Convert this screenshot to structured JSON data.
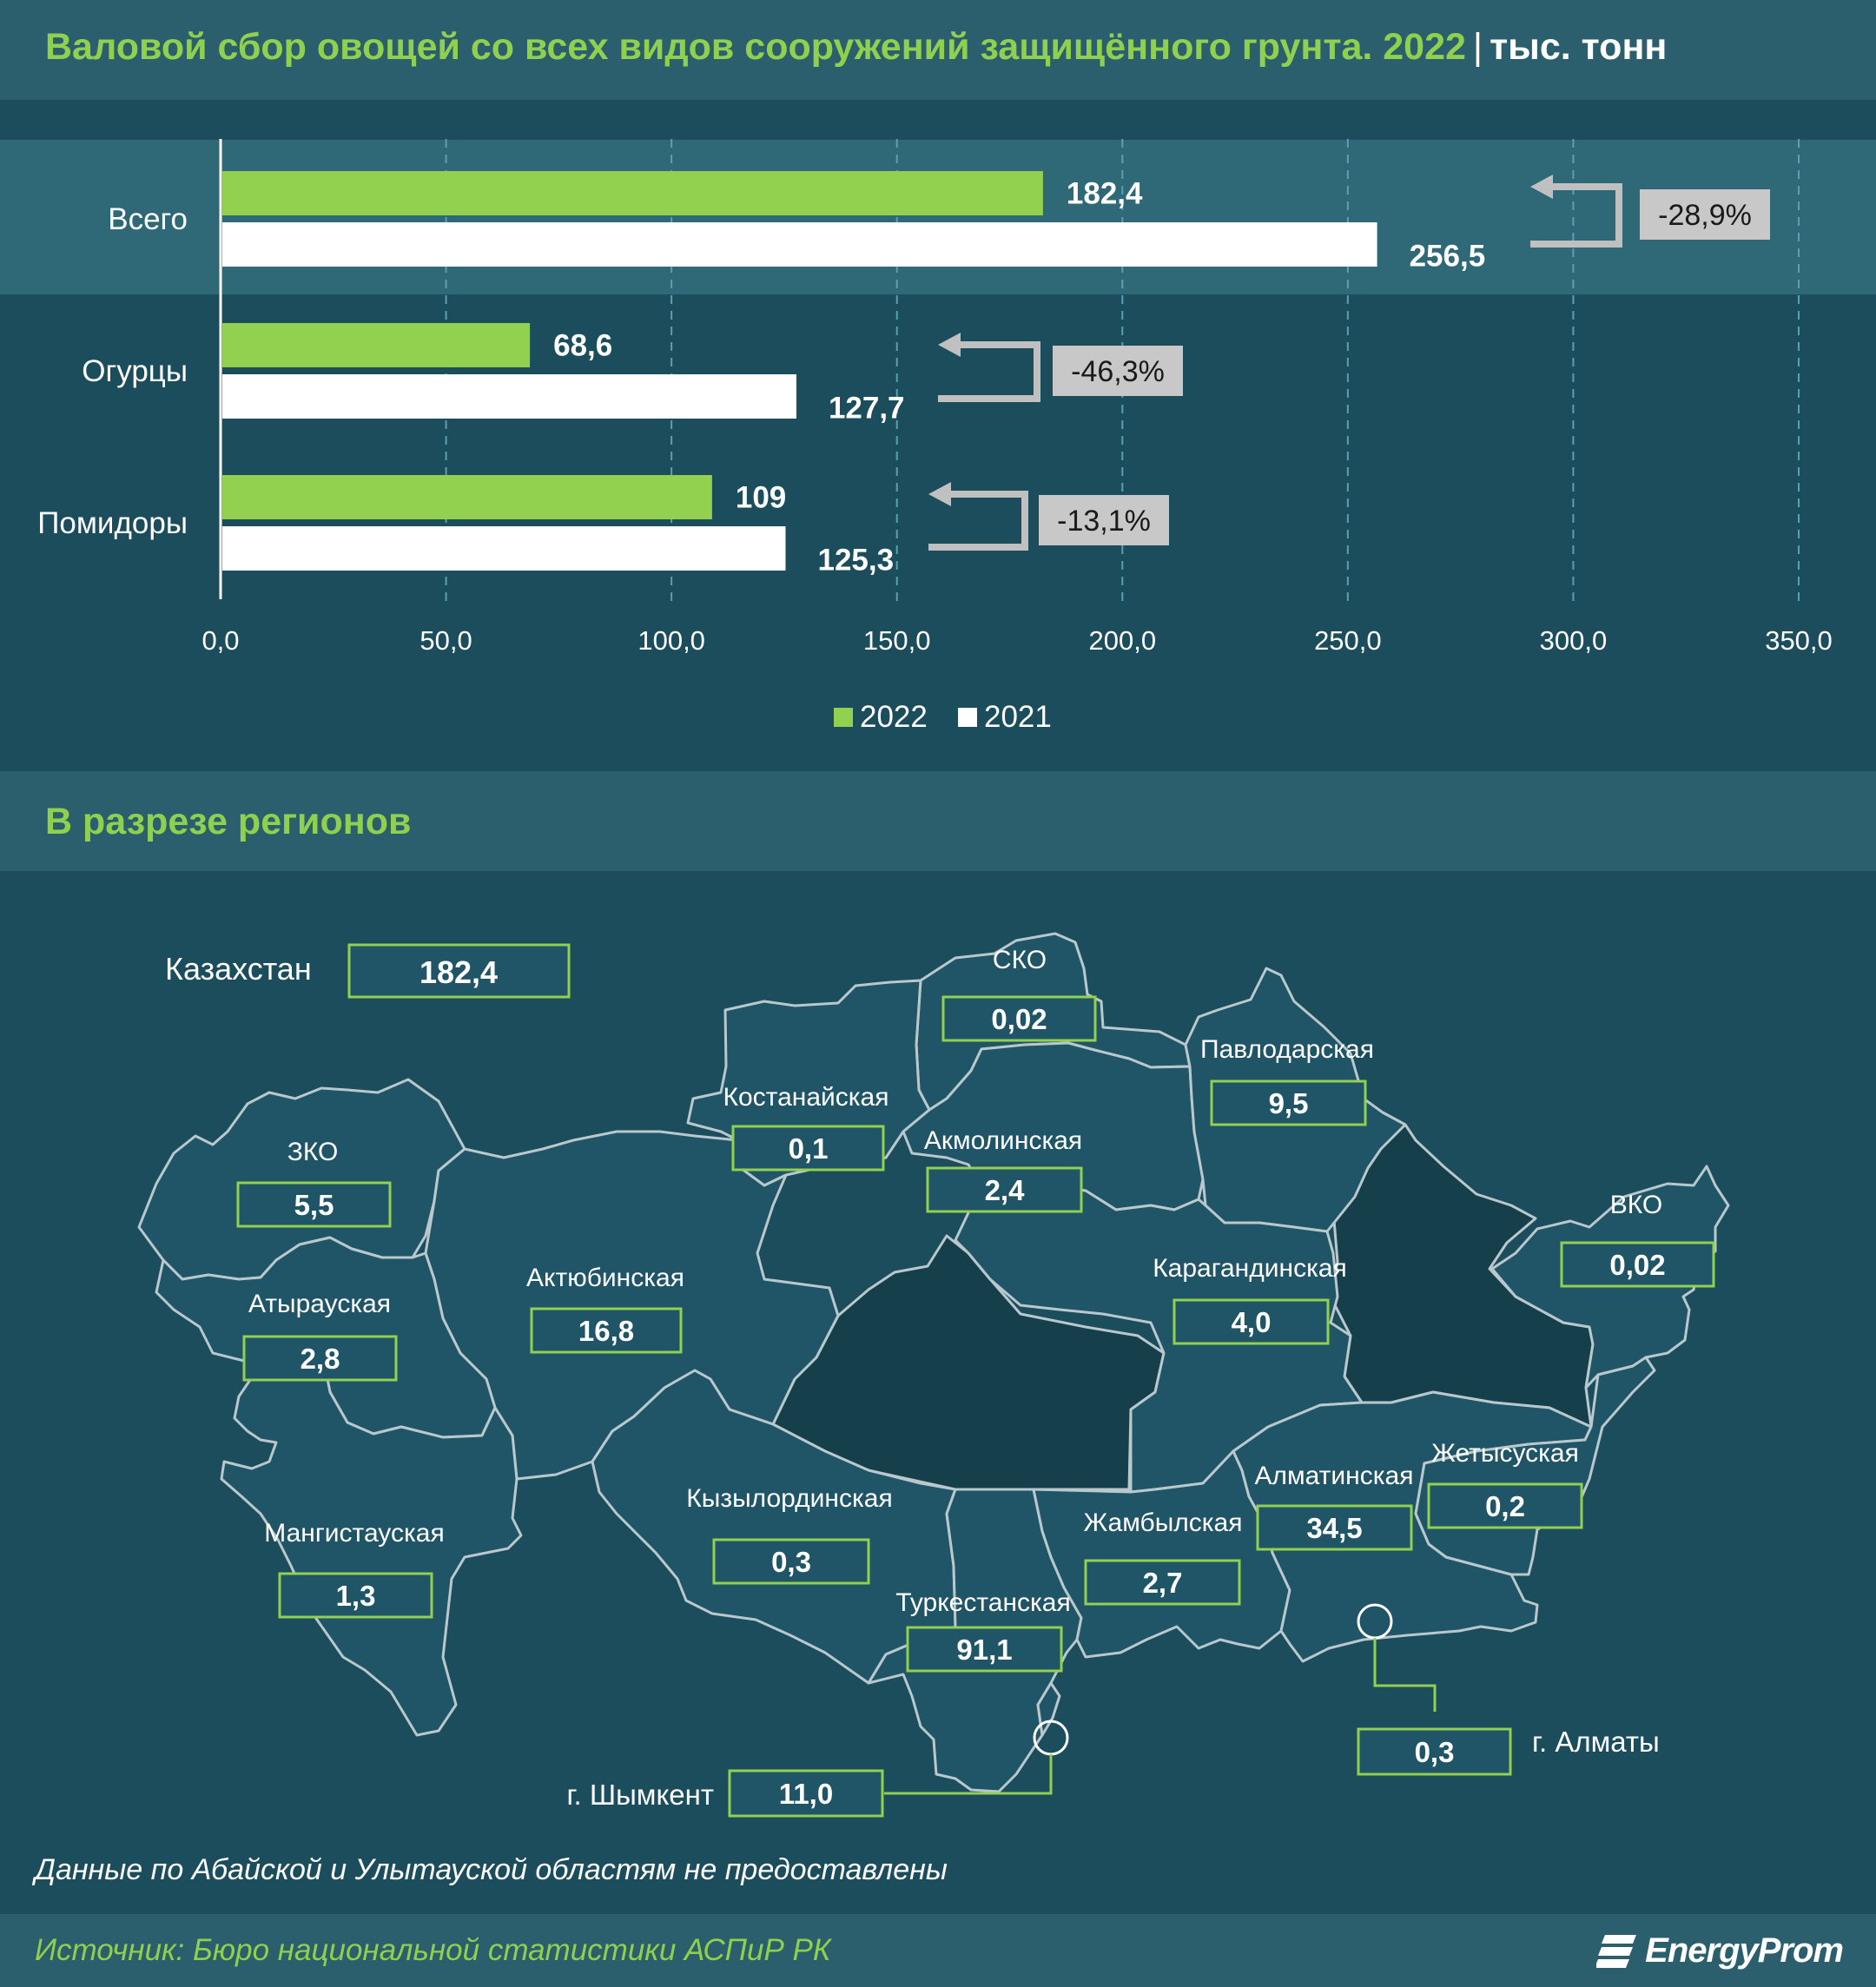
{
  "header": {
    "title": "Валовой сбор овощей со всех видов сооружений защищённого грунта. 2022",
    "separator": "|",
    "unit": "тыс. тонн"
  },
  "chart_data": {
    "type": "bar",
    "orientation": "horizontal",
    "categories": [
      "Всего",
      "Огурцы",
      "Помидоры"
    ],
    "series": [
      {
        "name": "2022",
        "color": "#92d050",
        "values": [
          182.4,
          68.6,
          109
        ]
      },
      {
        "name": "2021",
        "color": "#ffffff",
        "values": [
          256.5,
          127.7,
          125.3
        ]
      }
    ],
    "value_labels": {
      "2022": [
        "182,4",
        "68,6",
        "109"
      ],
      "2021": [
        "256,5",
        "127,7",
        "125,3"
      ]
    },
    "changes": [
      "-28,9%",
      "-46,3%",
      "-13,1%"
    ],
    "xlim": [
      0,
      350
    ],
    "xticks": [
      "0,0",
      "50,0",
      "100,0",
      "150,0",
      "200,0",
      "250,0",
      "300,0",
      "350,0"
    ],
    "grid": "vertical-dashed",
    "legend_position": "bottom-center"
  },
  "section": {
    "title": "В разрезе регионов"
  },
  "map": {
    "country": {
      "name": "Казахстан",
      "value": "182,4"
    },
    "regions": [
      {
        "name": "СКО",
        "value": "0,02"
      },
      {
        "name": "Павлодарская",
        "value": "9,5"
      },
      {
        "name": "Костанайская",
        "value": "0,1"
      },
      {
        "name": "Акмолинская",
        "value": "2,4"
      },
      {
        "name": "ЗКО",
        "value": "5,5"
      },
      {
        "name": "ВКО",
        "value": "0,02"
      },
      {
        "name": "Актюбинская",
        "value": "16,8"
      },
      {
        "name": "Карагандинская",
        "value": "4,0"
      },
      {
        "name": "Атырауская",
        "value": "2,8"
      },
      {
        "name": "Жетысуская",
        "value": "0,2"
      },
      {
        "name": "Алматинская",
        "value": "34,5"
      },
      {
        "name": "Кызылординская",
        "value": "0,3"
      },
      {
        "name": "Жамбылская",
        "value": "2,7"
      },
      {
        "name": "Мангистауская",
        "value": "1,3"
      },
      {
        "name": "Туркестанская",
        "value": "91,1"
      }
    ],
    "cities": [
      {
        "name": "г. Шымкент",
        "value": "11,0"
      },
      {
        "name": "г. Алматы",
        "value": "0,3"
      }
    ],
    "colors": {
      "region_fill": "#1f5566",
      "no_data_fill": "#163f4c",
      "border": "#b9c8cc",
      "box_border": "#92d050"
    }
  },
  "note": "Данные по Абайской и Улытауской областям не предоставлены",
  "footer": {
    "source": "Источник: Бюро национальной статистики АСПиР РК",
    "logo": "EnergyProm"
  }
}
